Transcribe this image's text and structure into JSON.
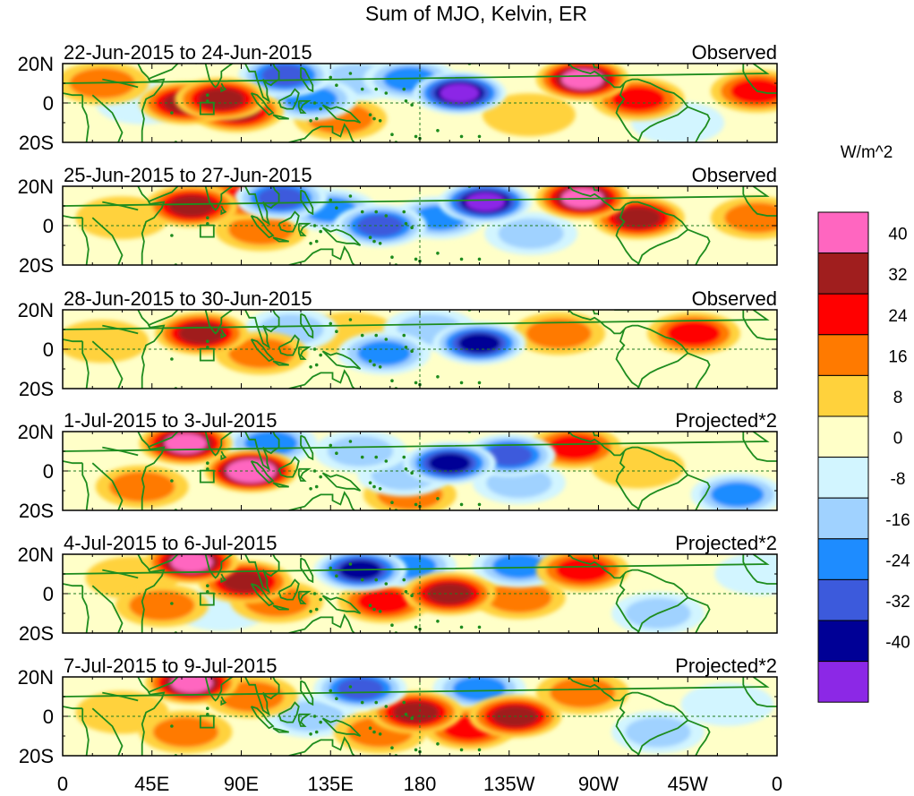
{
  "chart_data": {
    "type": "heatmap",
    "title": "Sum of MJO, Kelvin, ER",
    "units": "W/m^2",
    "lat_ticks": [
      "20N",
      "0",
      "20S"
    ],
    "lon_ticks": [
      "0",
      "45E",
      "90E",
      "135E",
      "180",
      "135W",
      "90W",
      "45W",
      "0"
    ],
    "lat_range": [
      -20,
      20
    ],
    "lon_range": [
      0,
      360
    ],
    "colorbar": {
      "levels": [
        "40",
        "32",
        "24",
        "16",
        "8",
        "0",
        "-8",
        "-16",
        "-24",
        "-32",
        "-40"
      ],
      "colors": [
        "#ff66c0",
        "#a01e1e",
        "#ff0000",
        "#ff7a00",
        "#ffd23c",
        "#ffffc8",
        "#d2f5ff",
        "#a0d2ff",
        "#1e8cff",
        "#3c5adc",
        "#000096",
        "#8c28e6"
      ]
    },
    "panels": [
      {
        "date": "22-Jun-2015 to 24-Jun-2015",
        "label": "Observed",
        "features": [
          {
            "lon": 80,
            "lat": 2,
            "value": 34
          },
          {
            "lon": 62,
            "lat": 0,
            "value": 30
          },
          {
            "lon": 88,
            "lat": -4,
            "value": 28
          },
          {
            "lon": 112,
            "lat": 14,
            "value": -30
          },
          {
            "lon": 125,
            "lat": 2,
            "value": -20
          },
          {
            "lon": 148,
            "lat": 12,
            "value": -16
          },
          {
            "lon": 200,
            "lat": 5,
            "value": -44
          },
          {
            "lon": 175,
            "lat": 12,
            "value": -22
          },
          {
            "lon": 262,
            "lat": 12,
            "value": 40
          },
          {
            "lon": 290,
            "lat": 2,
            "value": 20
          },
          {
            "lon": 350,
            "lat": 6,
            "value": 26
          },
          {
            "lon": 20,
            "lat": 10,
            "value": 14
          },
          {
            "lon": 40,
            "lat": 0,
            "value": -10
          },
          {
            "lon": 140,
            "lat": -8,
            "value": 14
          },
          {
            "lon": 310,
            "lat": -10,
            "value": -10
          },
          {
            "lon": 235,
            "lat": -6,
            "value": 8
          }
        ]
      },
      {
        "date": "25-Jun-2015 to 27-Jun-2015",
        "label": "Observed",
        "features": [
          {
            "lon": 65,
            "lat": 10,
            "value": 30
          },
          {
            "lon": 92,
            "lat": 14,
            "value": 26
          },
          {
            "lon": 100,
            "lat": -2,
            "value": 16
          },
          {
            "lon": 110,
            "lat": 14,
            "value": -28
          },
          {
            "lon": 135,
            "lat": 8,
            "value": -26
          },
          {
            "lon": 160,
            "lat": 0,
            "value": -34
          },
          {
            "lon": 213,
            "lat": 12,
            "value": -44
          },
          {
            "lon": 190,
            "lat": 4,
            "value": -20
          },
          {
            "lon": 262,
            "lat": 14,
            "value": 40
          },
          {
            "lon": 290,
            "lat": 4,
            "value": 28
          },
          {
            "lon": 30,
            "lat": 4,
            "value": 10
          },
          {
            "lon": 350,
            "lat": 4,
            "value": 12
          },
          {
            "lon": 236,
            "lat": -4,
            "value": -12
          }
        ]
      },
      {
        "date": "28-Jun-2015 to 30-Jun-2015",
        "label": "Observed",
        "features": [
          {
            "lon": 70,
            "lat": 8,
            "value": 34
          },
          {
            "lon": 100,
            "lat": -2,
            "value": 16
          },
          {
            "lon": 115,
            "lat": 10,
            "value": -12
          },
          {
            "lon": 162,
            "lat": -2,
            "value": -22
          },
          {
            "lon": 185,
            "lat": 10,
            "value": -18
          },
          {
            "lon": 210,
            "lat": 3,
            "value": -38
          },
          {
            "lon": 250,
            "lat": 8,
            "value": 18
          },
          {
            "lon": 318,
            "lat": 8,
            "value": 24
          },
          {
            "lon": 20,
            "lat": 4,
            "value": 8
          },
          {
            "lon": 145,
            "lat": 8,
            "value": 10
          }
        ]
      },
      {
        "date": "1-Jul-2015 to 3-Jul-2015",
        "label": "Projected*2",
        "features": [
          {
            "lon": 62,
            "lat": 14,
            "value": 36
          },
          {
            "lon": 95,
            "lat": 0,
            "value": 44
          },
          {
            "lon": 105,
            "lat": 14,
            "value": -22
          },
          {
            "lon": 150,
            "lat": 10,
            "value": -18
          },
          {
            "lon": 172,
            "lat": -2,
            "value": -16
          },
          {
            "lon": 195,
            "lat": 4,
            "value": -36
          },
          {
            "lon": 225,
            "lat": 8,
            "value": -28
          },
          {
            "lon": 230,
            "lat": -6,
            "value": -18
          },
          {
            "lon": 258,
            "lat": 12,
            "value": 24
          },
          {
            "lon": 290,
            "lat": 2,
            "value": 10
          },
          {
            "lon": 340,
            "lat": -12,
            "value": -26
          },
          {
            "lon": 40,
            "lat": -8,
            "value": 14
          },
          {
            "lon": 175,
            "lat": -12,
            "value": 12
          }
        ]
      },
      {
        "date": "4-Jul-2015 to 6-Jul-2015",
        "label": "Projected*2",
        "features": [
          {
            "lon": 65,
            "lat": 16,
            "value": 36
          },
          {
            "lon": 92,
            "lat": 6,
            "value": 32
          },
          {
            "lon": 108,
            "lat": -4,
            "value": 14
          },
          {
            "lon": 150,
            "lat": 12,
            "value": -36
          },
          {
            "lon": 175,
            "lat": 14,
            "value": -24
          },
          {
            "lon": 230,
            "lat": 14,
            "value": -22
          },
          {
            "lon": 195,
            "lat": 0,
            "value": 30
          },
          {
            "lon": 162,
            "lat": -4,
            "value": 22
          },
          {
            "lon": 230,
            "lat": -2,
            "value": 12
          },
          {
            "lon": 262,
            "lat": 12,
            "value": 22
          },
          {
            "lon": 300,
            "lat": -10,
            "value": -18
          },
          {
            "lon": 35,
            "lat": 8,
            "value": 10
          },
          {
            "lon": 50,
            "lat": -6,
            "value": 12
          },
          {
            "lon": 80,
            "lat": -8,
            "value": -10
          },
          {
            "lon": 352,
            "lat": 10,
            "value": -10
          }
        ]
      },
      {
        "date": "7-Jul-2015 to 9-Jul-2015",
        "label": "Projected*2",
        "features": [
          {
            "lon": 65,
            "lat": 17,
            "value": 42
          },
          {
            "lon": 95,
            "lat": 10,
            "value": 18
          },
          {
            "lon": 150,
            "lat": 14,
            "value": -34
          },
          {
            "lon": 210,
            "lat": 14,
            "value": -20
          },
          {
            "lon": 125,
            "lat": 0,
            "value": -14
          },
          {
            "lon": 178,
            "lat": 2,
            "value": 28
          },
          {
            "lon": 228,
            "lat": 0,
            "value": 34
          },
          {
            "lon": 205,
            "lat": -6,
            "value": 22
          },
          {
            "lon": 160,
            "lat": -8,
            "value": 16
          },
          {
            "lon": 262,
            "lat": 12,
            "value": 16
          },
          {
            "lon": 300,
            "lat": -8,
            "value": -18
          },
          {
            "lon": 62,
            "lat": -8,
            "value": 16
          },
          {
            "lon": 335,
            "lat": 6,
            "value": -10
          },
          {
            "lon": 30,
            "lat": 2,
            "value": 8
          }
        ]
      }
    ]
  }
}
